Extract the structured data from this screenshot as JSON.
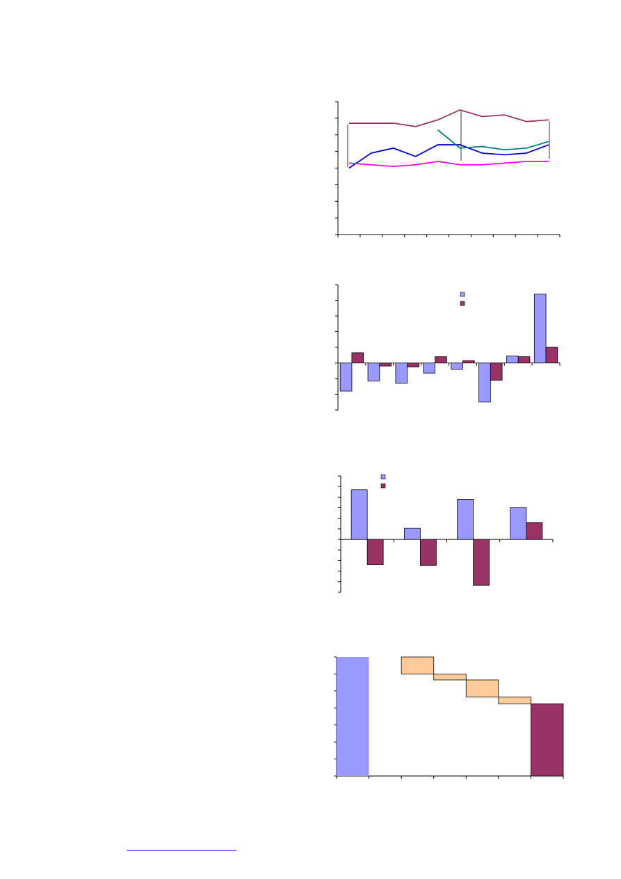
{
  "chart_data": [
    {
      "type": "line",
      "categories": [
        null,
        null,
        null,
        null,
        null,
        null,
        null,
        null,
        null,
        null
      ],
      "series": [
        {
          "color": "#993366",
          "values": [
            6.7,
            6.7,
            6.7,
            6.5,
            6.9,
            7.5,
            7.1,
            7.2,
            6.8,
            6.9
          ]
        },
        {
          "color": "#0000cc",
          "values": [
            4.0,
            4.9,
            5.2,
            4.7,
            5.4,
            5.4,
            4.9,
            4.8,
            4.9,
            5.4
          ]
        },
        {
          "color": "#008080",
          "values": [
            null,
            null,
            null,
            null,
            6.3,
            5.2,
            5.3,
            5.1,
            5.2,
            5.6
          ]
        },
        {
          "color": "#ff00ff",
          "values": [
            4.3,
            4.2,
            4.1,
            4.2,
            4.4,
            4.2,
            4.2,
            4.3,
            4.4,
            4.4
          ]
        }
      ],
      "ylim": [
        0,
        8
      ],
      "yticks": [
        0,
        1,
        2,
        3,
        4,
        5,
        6,
        7,
        8
      ]
    },
    {
      "type": "bar",
      "categories": [
        null,
        null,
        null,
        null,
        null,
        null,
        null,
        null
      ],
      "series": [
        {
          "color": "#9999ff",
          "values": [
            -1.8,
            -1.15,
            -1.3,
            -0.65,
            -0.4,
            -2.5,
            0.45,
            4.4
          ]
        },
        {
          "color": "#993366",
          "values": [
            0.65,
            -0.2,
            -0.25,
            0.4,
            0.15,
            -1.1,
            0.4,
            1.0
          ]
        }
      ],
      "ylim": [
        -3,
        5
      ],
      "yticks": [
        -3,
        -2,
        -1,
        0,
        1,
        2,
        3,
        4,
        5
      ],
      "legend": true
    },
    {
      "type": "bar",
      "categories": [
        null,
        null,
        null,
        null
      ],
      "series": [
        {
          "color": "#9999ff",
          "values": [
            4.7,
            1.05,
            3.8,
            3.0
          ]
        },
        {
          "color": "#993366",
          "values": [
            -2.4,
            -2.45,
            -4.35,
            1.6
          ]
        }
      ],
      "ylim": [
        -5,
        6
      ],
      "yticks": [
        -5,
        -4,
        -3,
        -2,
        -1,
        0,
        1,
        2,
        3,
        4,
        5,
        6
      ],
      "legend": true
    },
    {
      "type": "waterfall",
      "categories": [
        null,
        null,
        null,
        null,
        null,
        null,
        null
      ],
      "values": [
        7,
        0,
        -1.0,
        -0.35,
        -1.0,
        -0.4,
        4.25
      ],
      "colors": {
        "start": "#9999ff",
        "step": "#ffcc99",
        "end": "#993366"
      },
      "ylim": [
        0,
        7
      ],
      "yticks": [
        0,
        1,
        2,
        3,
        4,
        5,
        6,
        7
      ]
    }
  ]
}
